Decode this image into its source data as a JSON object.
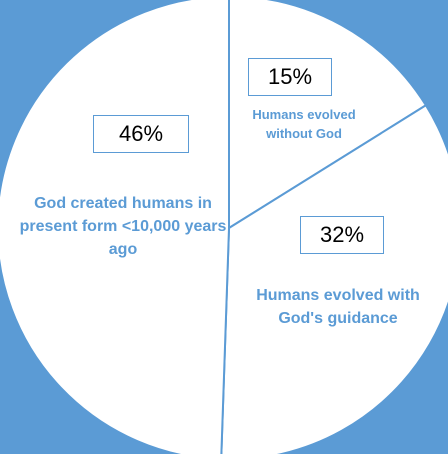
{
  "chart_data": {
    "type": "pie",
    "categories": [
      "Humans evolved without God",
      "Humans evolved with God's guidance",
      "God created humans in present form <10,000 years ago"
    ],
    "values": [
      15,
      32,
      46
    ],
    "value_labels": [
      "15%",
      "32%",
      "46%"
    ],
    "color": "#ffffff"
  }
}
